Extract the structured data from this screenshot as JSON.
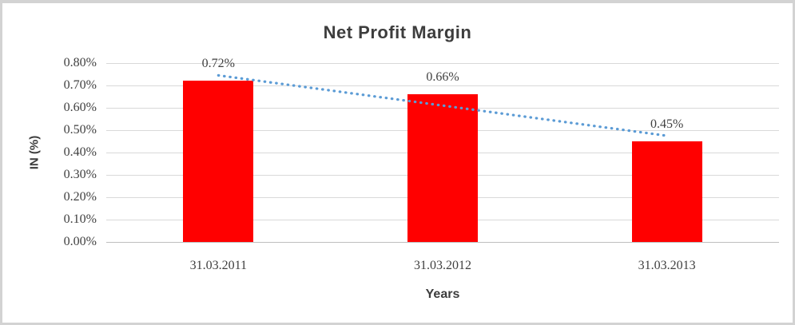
{
  "chart_data": {
    "type": "bar",
    "title": "Net Profit Margin",
    "categories": [
      "31.03.2011",
      "31.03.2012",
      "31.03.2013"
    ],
    "series": [
      {
        "name": "Net Profit Margin",
        "values": [
          0.72,
          0.66,
          0.45
        ]
      }
    ],
    "data_labels": [
      "0.72%",
      "0.66%",
      "0.45%"
    ],
    "xlabel": "Years",
    "ylabel": "IN (%)",
    "y_axis": {
      "min": 0,
      "max": 0.8,
      "step": 0.1,
      "tick_labels": [
        "0.80%",
        "0.70%",
        "0.60%",
        "0.50%",
        "0.40%",
        "0.30%",
        "0.20%",
        "0.10%",
        "0.00%"
      ]
    },
    "grid": true,
    "legend": "none",
    "trendline": {
      "type": "linear",
      "style": "dotted"
    },
    "colors": {
      "bar": "#ff0000",
      "trendline": "#5b9bd5",
      "gridline": "#d9d9d9",
      "axis_line": "#bfbfbf",
      "text": "#404040",
      "border": "#d3d3d3"
    }
  }
}
